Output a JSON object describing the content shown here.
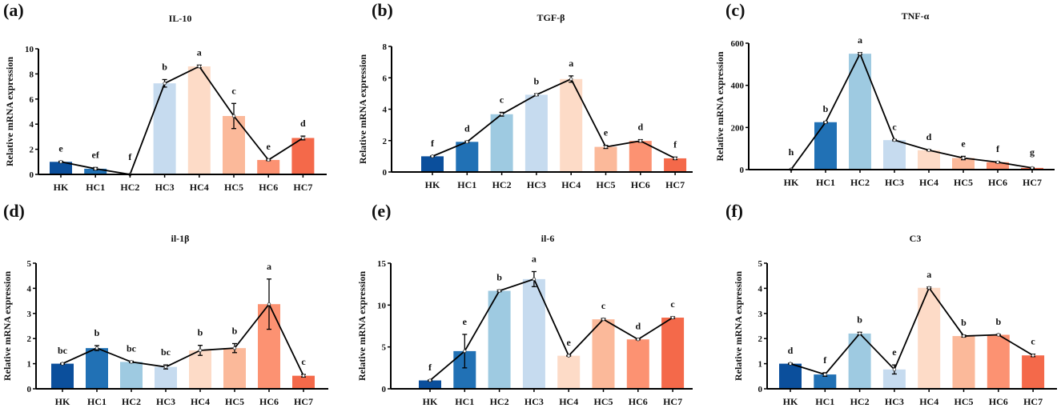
{
  "chart_data": [
    {
      "type": "bar",
      "panel_label": "(a)",
      "title": "IL-10",
      "xlabel": "",
      "ylabel": "Relative mRNA expression",
      "categories": [
        "HK",
        "HC1",
        "HC2",
        "HC3",
        "HC4",
        "HC5",
        "HC6",
        "HC7"
      ],
      "values": [
        1.0,
        0.45,
        0.0,
        7.25,
        8.6,
        4.65,
        1.15,
        2.9
      ],
      "errors": [
        0.05,
        0.1,
        0.02,
        0.3,
        0.1,
        1.0,
        0.05,
        0.15
      ],
      "letters": [
        "e",
        "ef",
        "f",
        "b",
        "a",
        "c",
        "e",
        "d"
      ],
      "ylim": [
        0,
        10
      ],
      "yticks": [
        0,
        2,
        4,
        6,
        8,
        10
      ]
    },
    {
      "type": "bar",
      "panel_label": "(b)",
      "title": "TGF-β",
      "xlabel": "",
      "ylabel": "Relative mRNA expression",
      "categories": [
        "HK",
        "HC1",
        "HC2",
        "HC3",
        "HC4",
        "HC5",
        "HC6",
        "HC7"
      ],
      "values": [
        1.0,
        1.92,
        3.68,
        4.92,
        5.92,
        1.6,
        1.98,
        0.87
      ],
      "errors": [
        0.02,
        0.05,
        0.12,
        0.06,
        0.2,
        0.1,
        0.08,
        0.08
      ],
      "letters": [
        "f",
        "d",
        "c",
        "b",
        "a",
        "e",
        "d",
        "f"
      ],
      "ylim": [
        0,
        8
      ],
      "yticks": [
        0,
        2,
        4,
        6,
        8
      ]
    },
    {
      "type": "bar",
      "panel_label": "(c)",
      "title": "TNF-α",
      "xlabel": "",
      "ylabel": "Relative mRNA expression",
      "categories": [
        "HK",
        "HC1",
        "HC2",
        "HC3",
        "HC4",
        "HC5",
        "HC6",
        "HC7"
      ],
      "values": [
        1,
        225,
        550,
        140,
        92,
        55,
        35,
        8
      ],
      "errors": [
        1,
        3,
        5,
        3,
        3,
        8,
        3,
        2
      ],
      "letters": [
        "h",
        "b",
        "a",
        "c",
        "d",
        "e",
        "f",
        "g"
      ],
      "ylim": [
        0,
        600
      ],
      "yticks": [
        0,
        200,
        400,
        600
      ]
    },
    {
      "type": "bar",
      "panel_label": "(d)",
      "title": "il-1β",
      "xlabel": "",
      "ylabel": "Relative mRNA expression",
      "categories": [
        "HK",
        "HC1",
        "HC2",
        "HC3",
        "HC4",
        "HC5",
        "HC6",
        "HC7"
      ],
      "values": [
        1.0,
        1.62,
        1.07,
        0.87,
        1.53,
        1.62,
        3.37,
        0.52
      ],
      "errors": [
        0.02,
        0.1,
        0.03,
        0.08,
        0.2,
        0.18,
        1.0,
        0.05
      ],
      "letters": [
        "bc",
        "b",
        "bc",
        "bc",
        "b",
        "b",
        "a",
        "c"
      ],
      "ylim": [
        0,
        5
      ],
      "yticks": [
        0,
        1,
        2,
        3,
        4,
        5
      ]
    },
    {
      "type": "bar",
      "panel_label": "(e)",
      "title": "il-6",
      "xlabel": "",
      "ylabel": "Relative mRNA expression",
      "categories": [
        "HK",
        "HC1",
        "HC2",
        "HC3",
        "HC4",
        "HC5",
        "HC6",
        "HC7"
      ],
      "values": [
        1.0,
        4.5,
        11.7,
        13.1,
        3.95,
        8.3,
        5.9,
        8.5
      ],
      "errors": [
        0.05,
        2.0,
        0.1,
        0.9,
        0.05,
        0.1,
        0.05,
        0.1
      ],
      "letters": [
        "f",
        "e",
        "b",
        "a",
        "e",
        "c",
        "d",
        "c"
      ],
      "ylim": [
        0,
        15
      ],
      "yticks": [
        0,
        5,
        10,
        15
      ]
    },
    {
      "type": "bar",
      "panel_label": "(f)",
      "title": "C3",
      "xlabel": "",
      "ylabel": "Relative mRNA expression",
      "categories": [
        "HK",
        "HC1",
        "HC2",
        "HC3",
        "HC4",
        "HC5",
        "HC6",
        "HC7"
      ],
      "values": [
        1.0,
        0.57,
        2.2,
        0.77,
        4.02,
        2.1,
        2.15,
        1.33
      ],
      "errors": [
        0.02,
        0.07,
        0.05,
        0.18,
        0.03,
        0.04,
        0.02,
        0.05
      ],
      "letters": [
        "d",
        "f",
        "b",
        "e",
        "a",
        "b",
        "b",
        "c"
      ],
      "ylim": [
        0,
        5
      ],
      "yticks": [
        0,
        1,
        2,
        3,
        4,
        5
      ]
    }
  ],
  "colors": [
    "#0b4f9c",
    "#2171b5",
    "#9ecae1",
    "#c6dbef",
    "#fddbc7",
    "#fbb99a",
    "#fc9272",
    "#f4694a"
  ]
}
